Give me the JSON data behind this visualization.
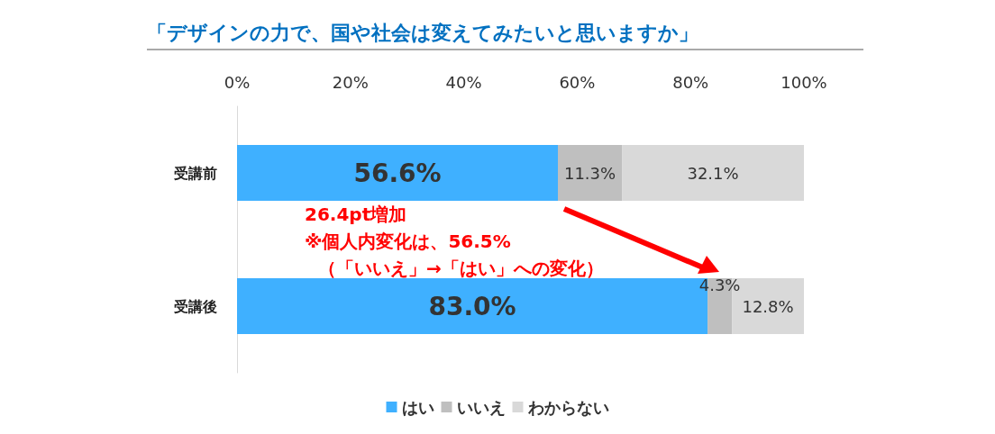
{
  "chart_data": {
    "type": "bar",
    "orientation": "horizontal",
    "stacked": true,
    "title": "「デザインの力で、国や社会は変えてみたいと思いますか」",
    "categories": [
      "受講前",
      "受講後"
    ],
    "series": [
      {
        "name": "はい",
        "color": "#3fb0ff",
        "values": [
          56.6,
          83.0
        ],
        "value_labels": [
          "56.6%",
          "83.0%"
        ]
      },
      {
        "name": "いいえ",
        "color": "#bfbfbf",
        "values": [
          11.3,
          4.3
        ],
        "value_labels": [
          "11.3%",
          "4.3%"
        ]
      },
      {
        "name": "わからない",
        "color": "#d9d9d9",
        "values": [
          32.1,
          12.8
        ],
        "value_labels": [
          "32.1%",
          "12.8%"
        ]
      }
    ],
    "xlim": [
      0,
      100
    ],
    "xticks": [
      {
        "value": 0,
        "label": "0%"
      },
      {
        "value": 20,
        "label": "20%"
      },
      {
        "value": 40,
        "label": "40%"
      },
      {
        "value": 60,
        "label": "60%"
      },
      {
        "value": 80,
        "label": "80%"
      },
      {
        "value": 100,
        "label": "100%"
      }
    ],
    "annotations": [
      "26.4pt増加",
      "※個人内変化は、56.5%",
      "（「いいえ」→「はい」への変化）"
    ],
    "grid": false,
    "legend": "bottom"
  }
}
